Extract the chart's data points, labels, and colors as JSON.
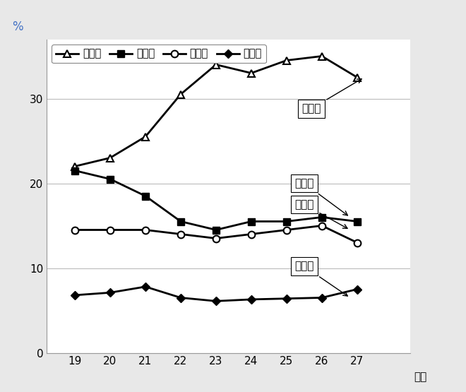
{
  "x": [
    19,
    20,
    21,
    22,
    23,
    24,
    25,
    26,
    27
  ],
  "minsei": [
    22.0,
    23.0,
    25.5,
    30.5,
    34.0,
    33.0,
    34.5,
    35.0,
    32.5
  ],
  "doboku": [
    21.5,
    20.5,
    18.5,
    15.5,
    14.5,
    15.5,
    15.5,
    16.0,
    15.5
  ],
  "kokusai": [
    14.5,
    14.5,
    14.5,
    14.0,
    13.5,
    14.0,
    14.5,
    15.0,
    13.0
  ],
  "kyoiku": [
    6.8,
    7.1,
    7.8,
    6.5,
    6.1,
    6.3,
    6.4,
    6.5,
    7.5
  ],
  "ylabel": "%",
  "xlabel": "年度",
  "legend_labels": [
    "民生費",
    "土木費",
    "公債費",
    "教育費"
  ],
  "annotation_minsei": "民生費",
  "annotation_doboku": "土木費",
  "annotation_kokusai": "公債費",
  "annotation_kyoiku": "教育費",
  "ylim": [
    0,
    37
  ],
  "yticks": [
    0,
    10,
    20,
    30
  ],
  "bg_color": "#e8e8e8",
  "plot_bg": "#ffffff",
  "line_color": "#000000",
  "grid_color": "#bbbbbb",
  "axis_label_color": "#4472c4"
}
